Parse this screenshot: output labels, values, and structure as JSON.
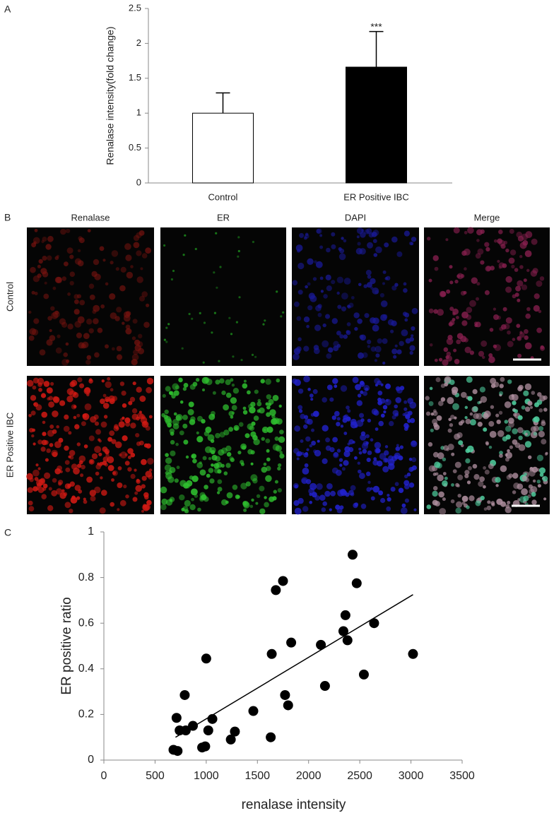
{
  "panel_labels": [
    "A",
    "B",
    "C"
  ],
  "image_panel": {
    "columns": [
      "Renalase",
      "ER",
      "DAPI",
      "Merge"
    ],
    "rows": [
      "Control",
      "ER Positive IBC"
    ]
  },
  "chart_data": [
    {
      "type": "bar",
      "ylabel": "Renalase intensity(fold change)",
      "categories": [
        "Control",
        "ER Positive IBC"
      ],
      "values": [
        1,
        1.66
      ],
      "errors": [
        0.29,
        0.51
      ],
      "colors": [
        "#ffffff",
        "#000000"
      ],
      "annotations": [
        null,
        "***"
      ],
      "ylim": [
        0,
        2.5
      ],
      "yticks": [
        0,
        0.5,
        1,
        1.5,
        2,
        2.5
      ]
    },
    {
      "type": "scatter",
      "xlabel": "renalase intensity",
      "ylabel": "ER positive ratio",
      "color": "#000000",
      "x": [
        680,
        720,
        710,
        740,
        790,
        800,
        870,
        960,
        990,
        1000,
        1020,
        1060,
        1240,
        1280,
        1460,
        1630,
        1640,
        1680,
        1750,
        1770,
        1800,
        1830,
        2120,
        2160,
        2340,
        2360,
        2380,
        2430,
        2470,
        2540,
        2640,
        3020
      ],
      "y": [
        0.045,
        0.04,
        0.185,
        0.13,
        0.285,
        0.13,
        0.15,
        0.055,
        0.06,
        0.445,
        0.13,
        0.18,
        0.09,
        0.125,
        0.215,
        0.1,
        0.465,
        0.745,
        0.785,
        0.285,
        0.24,
        0.515,
        0.505,
        0.325,
        0.565,
        0.635,
        0.525,
        0.9,
        0.775,
        0.375,
        0.6,
        0.465
      ],
      "trendline": {
        "x": [
          700,
          3020
        ],
        "y": [
          0.1,
          0.725
        ]
      },
      "xlim": [
        0,
        3500
      ],
      "xticks": [
        0,
        500,
        1000,
        1500,
        2000,
        2500,
        3000,
        3500
      ],
      "ylim": [
        0,
        1
      ],
      "yticks": [
        0,
        0.2,
        0.4,
        0.6,
        0.8,
        1
      ]
    }
  ]
}
